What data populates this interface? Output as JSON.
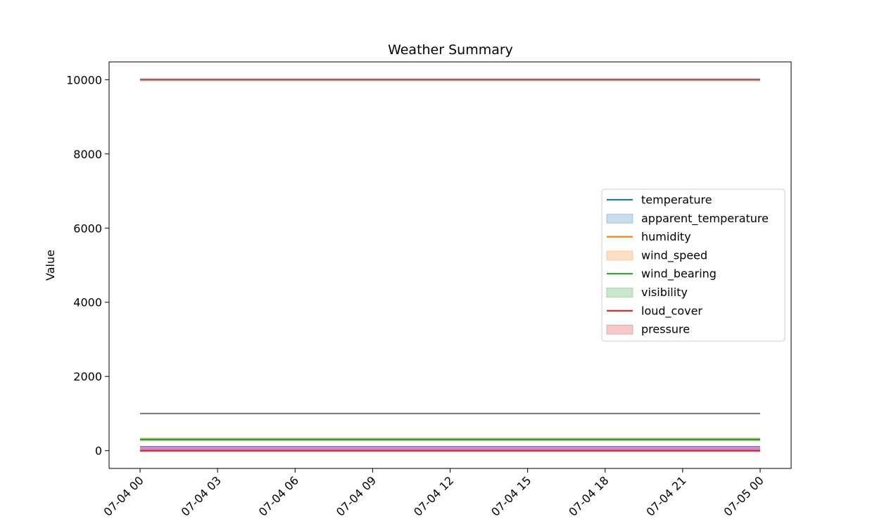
{
  "chart_data": {
    "type": "line",
    "title": "Weather Summary",
    "xlabel": "",
    "ylabel": "Value",
    "x": [
      "07-04 00",
      "07-04 03",
      "07-04 06",
      "07-04 09",
      "07-04 12",
      "07-04 15",
      "07-04 18",
      "07-04 21",
      "07-05 00"
    ],
    "xtick_labels": [
      "07-04 00",
      "07-04 03",
      "07-04 06",
      "07-04 09",
      "07-04 12",
      "07-04 15",
      "07-04 18",
      "07-04 21",
      "07-05 00"
    ],
    "ylim": [
      -480,
      10480
    ],
    "yticks": [
      0,
      2000,
      4000,
      6000,
      8000,
      10000
    ],
    "ytick_labels": [
      "0",
      "2000",
      "4000",
      "6000",
      "8000",
      "10000"
    ],
    "grid": false,
    "legend_position": "center-right",
    "series": [
      {
        "name": "temperature",
        "kind": "line",
        "color": "#1f77b4",
        "values": [
          0,
          0,
          0,
          0,
          0,
          0,
          0,
          0,
          0
        ]
      },
      {
        "name": "apparent_temperature",
        "kind": "band",
        "color": "#1f77b4",
        "values": [
          0,
          0,
          0,
          0,
          0,
          0,
          0,
          0,
          0
        ]
      },
      {
        "name": "humidity",
        "kind": "line",
        "color": "#ff7f0e",
        "values": [
          300,
          300,
          300,
          300,
          300,
          300,
          300,
          300,
          300
        ]
      },
      {
        "name": "wind_speed",
        "kind": "band",
        "color": "#ff7f0e",
        "values": [
          300,
          300,
          300,
          300,
          300,
          300,
          300,
          300,
          300
        ]
      },
      {
        "name": "wind_bearing",
        "kind": "line",
        "color": "#2ca02c",
        "values": [
          300,
          300,
          300,
          300,
          300,
          300,
          300,
          300,
          300
        ]
      },
      {
        "name": "visibility",
        "kind": "band",
        "color": "#2ca02c",
        "values": [
          300,
          300,
          300,
          300,
          300,
          300,
          300,
          300,
          300
        ]
      },
      {
        "name": "loud_cover",
        "kind": "line",
        "color": "#d62728",
        "values": [
          0,
          0,
          0,
          0,
          0,
          0,
          0,
          0,
          0
        ]
      },
      {
        "name": "pressure",
        "kind": "band",
        "color": "#d62728",
        "values": [
          10000,
          10000,
          10000,
          10000,
          10000,
          10000,
          10000,
          10000,
          10000
        ]
      }
    ],
    "extra_lines": [
      {
        "color": "#9467bd",
        "values": [
          100,
          100,
          100,
          100,
          100,
          100,
          100,
          100,
          100
        ]
      },
      {
        "color": "#e377c2",
        "values": [
          50,
          50,
          50,
          50,
          50,
          50,
          50,
          50,
          50
        ]
      },
      {
        "color": "#7f7f7f",
        "values": [
          1000,
          1000,
          1000,
          1000,
          1000,
          1000,
          1000,
          1000,
          1000
        ]
      },
      {
        "color": "#8c564b",
        "values": [
          10000,
          10000,
          10000,
          10000,
          10000,
          10000,
          10000,
          10000,
          10000
        ]
      }
    ]
  }
}
